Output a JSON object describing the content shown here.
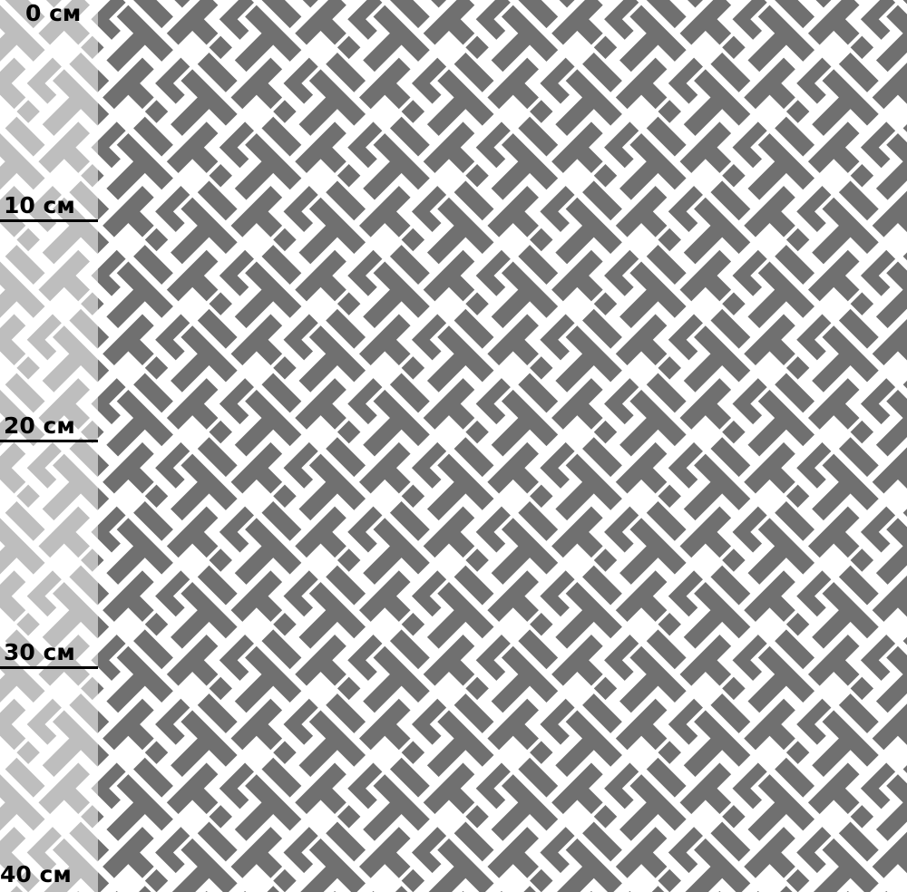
{
  "ruler": {
    "unit": "см",
    "labels": [
      "0 см",
      "10 см",
      "20 см",
      "30 см",
      "40 см"
    ]
  },
  "colors": {
    "pattern": "#707070",
    "background": "#ffffff",
    "ruler_text": "#000000"
  }
}
